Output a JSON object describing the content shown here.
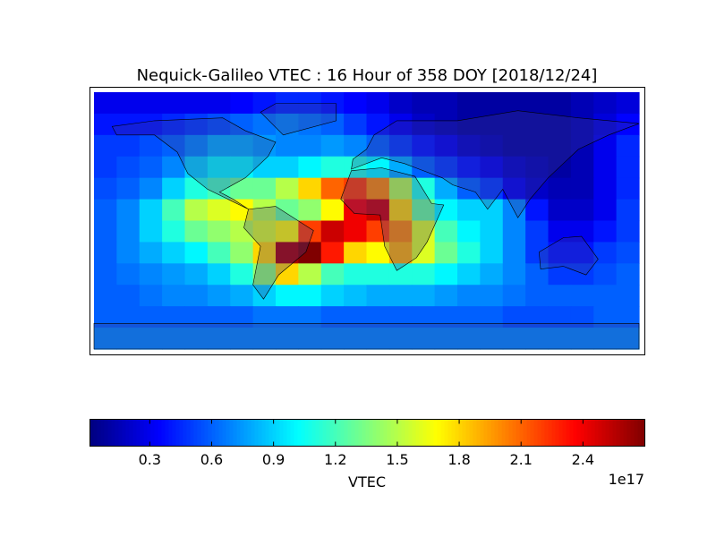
{
  "chart_data": {
    "type": "heatmap",
    "title": "Nequick-Galileo VTEC : 16 Hour of 358 DOY [2018/12/24]",
    "colormap": "jet",
    "values": [
      [
        0.3,
        0.3,
        0.3,
        0.3,
        0.3,
        0.3,
        0.35,
        0.4,
        0.45,
        0.45,
        0.4,
        0.35,
        0.3,
        0.2,
        0.15,
        0.15,
        0.1,
        0.1,
        0.1,
        0.1,
        0.1,
        0.15,
        0.2,
        0.25
      ],
      [
        0.4,
        0.4,
        0.4,
        0.45,
        0.5,
        0.55,
        0.6,
        0.65,
        0.7,
        0.65,
        0.6,
        0.5,
        0.4,
        0.3,
        0.2,
        0.15,
        0.1,
        0.1,
        0.1,
        0.1,
        0.1,
        0.15,
        0.25,
        0.35
      ],
      [
        0.5,
        0.5,
        0.55,
        0.6,
        0.7,
        0.8,
        0.8,
        0.75,
        0.7,
        0.7,
        0.75,
        0.7,
        0.6,
        0.5,
        0.4,
        0.3,
        0.2,
        0.15,
        0.1,
        0.1,
        0.1,
        0.15,
        0.3,
        0.45
      ],
      [
        0.5,
        0.55,
        0.6,
        0.7,
        0.9,
        1.0,
        1.0,
        0.9,
        0.9,
        1.0,
        1.1,
        1.1,
        1.0,
        0.8,
        0.6,
        0.5,
        0.4,
        0.3,
        0.2,
        0.15,
        0.1,
        0.15,
        0.3,
        0.45
      ],
      [
        0.55,
        0.6,
        0.7,
        0.9,
        1.1,
        1.2,
        1.3,
        1.3,
        1.5,
        1.8,
        2.1,
        2.2,
        2.0,
        1.5,
        1.1,
        0.8,
        0.6,
        0.5,
        0.3,
        0.2,
        0.15,
        0.15,
        0.3,
        0.45
      ],
      [
        0.6,
        0.7,
        0.9,
        1.2,
        1.5,
        1.6,
        1.7,
        1.5,
        1.3,
        1.4,
        1.7,
        2.4,
        2.5,
        1.8,
        1.3,
        1.0,
        0.9,
        0.9,
        0.7,
        0.4,
        0.2,
        0.2,
        0.3,
        0.5
      ],
      [
        0.6,
        0.7,
        0.9,
        1.1,
        1.3,
        1.4,
        1.5,
        1.6,
        1.7,
        2.2,
        2.5,
        2.4,
        2.2,
        2.0,
        1.6,
        1.2,
        1.0,
        0.9,
        0.7,
        0.5,
        0.3,
        0.3,
        0.4,
        0.5
      ],
      [
        0.6,
        0.7,
        0.8,
        0.9,
        1.0,
        1.2,
        1.4,
        1.8,
        2.6,
        2.7,
        2.3,
        1.8,
        1.7,
        1.9,
        1.6,
        1.3,
        1.1,
        0.9,
        0.7,
        0.5,
        0.4,
        0.4,
        0.5,
        0.55
      ],
      [
        0.6,
        0.65,
        0.7,
        0.75,
        0.8,
        0.9,
        1.1,
        1.4,
        1.8,
        1.5,
        1.2,
        1.1,
        1.1,
        1.1,
        1.1,
        1.0,
        0.9,
        0.8,
        0.7,
        0.6,
        0.5,
        0.5,
        0.55,
        0.6
      ],
      [
        0.6,
        0.6,
        0.65,
        0.7,
        0.7,
        0.75,
        0.8,
        0.9,
        1.0,
        1.0,
        0.9,
        0.85,
        0.8,
        0.8,
        0.8,
        0.75,
        0.7,
        0.7,
        0.65,
        0.6,
        0.6,
        0.6,
        0.6,
        0.6
      ],
      [
        0.6,
        0.6,
        0.6,
        0.6,
        0.6,
        0.6,
        0.6,
        0.65,
        0.65,
        0.65,
        0.6,
        0.6,
        0.6,
        0.6,
        0.6,
        0.6,
        0.6,
        0.6,
        0.55,
        0.55,
        0.55,
        0.55,
        0.6,
        0.6
      ],
      [
        0.7,
        0.7,
        0.7,
        0.7,
        0.7,
        0.7,
        0.7,
        0.7,
        0.7,
        0.7,
        0.7,
        0.7,
        0.7,
        0.7,
        0.7,
        0.7,
        0.7,
        0.7,
        0.7,
        0.7,
        0.7,
        0.7,
        0.7,
        0.7
      ]
    ],
    "colorbar": {
      "label": "VTEC",
      "offset_label": "1e17",
      "lim": [
        0.01,
        2.7
      ],
      "ticks": [
        0.3,
        0.6,
        0.9,
        1.2,
        1.5,
        1.8,
        2.1,
        2.4
      ]
    }
  }
}
